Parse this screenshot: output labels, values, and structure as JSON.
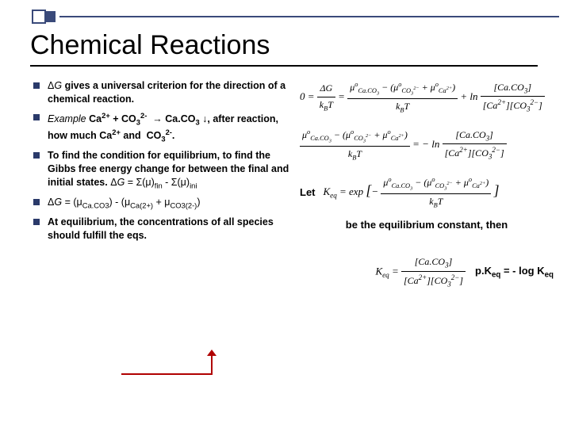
{
  "title": "Chemical Reactions",
  "bullets": [
    {
      "html": "Δ<i>G</i> <b>gives a universal criterion for the direction of a chemical reaction.</b>"
    },
    {
      "html": "<i>Example</i> <b>Ca<sup>2+</sup> + CO<sub>3</sub><sup>2-</sup>&nbsp; → Ca.CO<sub>3</sub> ↓, after reaction, how much Ca<sup>2+</sup> and&nbsp; CO<sub>3</sub><sup>2-</sup>.</b>"
    },
    {
      "html": "<b>To find the condition for equilibrium, to find the Gibbs free energy change for between the final and initial states.</b> Δ<i>G</i> = Σ(μ)<sub>fin</sub> - Σ(μ)<sub>ini</sub>"
    },
    {
      "html": "Δ<i>G</i> = (μ<sub>Ca.CO3</sub>) - (μ<sub>Ca(2+)</sub> + μ<sub>CO3(2-)</sub>)"
    },
    {
      "html": "<b>At equilibrium, the concentrations of all species should fulfill the eqs.</b>"
    }
  ],
  "right": {
    "let_label": "Let",
    "eq_constant_text": "be the equilibrium constant, then",
    "pkeq_text": "p.K<sub>eq</sub> = - log K<sub>eq</sub>"
  },
  "colors": {
    "accent": "#3a4a7a",
    "red": "#b00000",
    "text": "#000000",
    "bg": "#ffffff"
  }
}
